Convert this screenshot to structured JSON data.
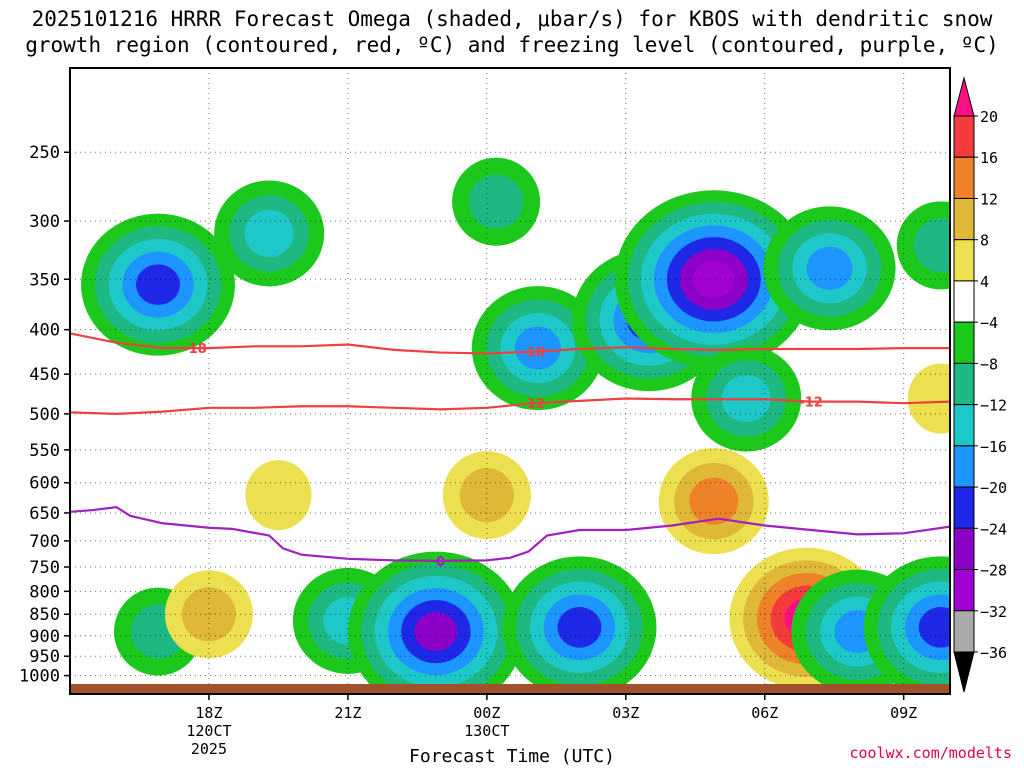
{
  "title_line1": "2025101216 HRRR Forecast Omega (shaded, μbar/s) for KBOS with dendritic snow",
  "title_line2": "growth region (contoured, red, ºC) and freezing level (contoured, purple, ºC)",
  "watermark": "coolwx.com/modelts",
  "chart_data": {
    "type": "heatmap",
    "title": "2025101216 HRRR Forecast Omega (shaded, μbar/s) for KBOS with dendritic snow growth region (contoured, red, ºC) and freezing level (contoured, purple, ºC)",
    "xlabel": "Forecast Time (UTC)",
    "ylabel": "",
    "x_hours_range": [
      15,
      34
    ],
    "ylim": [
      1050,
      200
    ],
    "y_scale": "log-pressure",
    "y_ticks": [
      250,
      300,
      350,
      400,
      450,
      500,
      550,
      600,
      650,
      700,
      750,
      800,
      850,
      900,
      950,
      1000
    ],
    "x_ticks": [
      {
        "hour": 18,
        "lines": [
          "18Z",
          "120CT",
          "2025"
        ]
      },
      {
        "hour": 21,
        "lines": [
          "21Z"
        ]
      },
      {
        "hour": 24,
        "lines": [
          "00Z",
          "130CT"
        ]
      },
      {
        "hour": 27,
        "lines": [
          "03Z"
        ]
      },
      {
        "hour": 30,
        "lines": [
          "06Z"
        ]
      },
      {
        "hour": 33,
        "lines": [
          "09Z"
        ]
      }
    ],
    "grid": true,
    "colorbar": {
      "levels": [
        20,
        16,
        12,
        8,
        4,
        -4,
        -8,
        -12,
        -16,
        -20,
        -24,
        -28,
        -32,
        -36
      ],
      "colors": [
        "#ff0f83",
        "#f43c3c",
        "#ee8228",
        "#e0b838",
        "#ece050",
        "#ffffff",
        "#1dc81d",
        "#1eb882",
        "#1ec8c8",
        "#1e96ff",
        "#1e28e6",
        "#8c00c8",
        "#a000d2",
        "#aaaaaa",
        "#000000"
      ],
      "labels": [
        "20",
        "16",
        "12",
        "8",
        "4",
        "−4",
        "−8",
        "−12",
        "−16",
        "−20",
        "−24",
        "−28",
        "−32",
        "−36"
      ]
    },
    "omega_features": [
      {
        "hour": 16.9,
        "p": 355,
        "value": -20
      },
      {
        "hour": 16.9,
        "p": 890,
        "value": -10
      },
      {
        "hour": 19.3,
        "p": 310,
        "value": -12
      },
      {
        "hour": 21.0,
        "p": 865,
        "value": -14
      },
      {
        "hour": 22.9,
        "p": 890,
        "value": -26
      },
      {
        "hour": 24.2,
        "p": 285,
        "value": -8
      },
      {
        "hour": 25.1,
        "p": 420,
        "value": -18
      },
      {
        "hour": 26.0,
        "p": 880,
        "value": -22
      },
      {
        "hour": 27.5,
        "p": 390,
        "value": -20
      },
      {
        "hour": 28.9,
        "p": 350,
        "value": -30
      },
      {
        "hour": 28.9,
        "p": 630,
        "value": 14
      },
      {
        "hour": 29.6,
        "p": 480,
        "value": -12
      },
      {
        "hour": 30.9,
        "p": 860,
        "value": 22
      },
      {
        "hour": 31.4,
        "p": 340,
        "value": -16
      },
      {
        "hour": 32.0,
        "p": 890,
        "value": -18
      },
      {
        "hour": 33.8,
        "p": 320,
        "value": -10
      },
      {
        "hour": 33.8,
        "p": 480,
        "value": 6
      },
      {
        "hour": 33.8,
        "p": 880,
        "value": -20
      },
      {
        "hour": 19.5,
        "p": 620,
        "value": 6
      },
      {
        "hour": 24.0,
        "p": 620,
        "value": 8
      },
      {
        "hour": 18.0,
        "p": 850,
        "value": 8
      }
    ],
    "series": [
      {
        "name": "-18",
        "color": "#ee4040",
        "x": [
          15,
          16,
          17,
          18,
          19,
          20,
          21,
          22,
          23,
          24,
          25,
          26,
          27,
          28,
          29,
          30,
          31,
          32,
          33,
          34
        ],
        "y": [
          404,
          414,
          420,
          420,
          418,
          418,
          416,
          422,
          425,
          426,
          424,
          421,
          419,
          421,
          422,
          421,
          421,
          421,
          420,
          420
        ]
      },
      {
        "name": "-12",
        "color": "#ee4040",
        "x": [
          15,
          16,
          17,
          18,
          19,
          20,
          21,
          22,
          23,
          24,
          25,
          26,
          27,
          28,
          29,
          30,
          31,
          32,
          33,
          34
        ],
        "y": [
          498,
          500,
          497,
          492,
          492,
          490,
          490,
          492,
          494,
          492,
          486,
          483,
          480,
          481,
          481,
          481,
          484,
          484,
          486,
          484
        ]
      },
      {
        "name": "0",
        "color": "#a020c0",
        "x": [
          15,
          15.5,
          16,
          16.3,
          17,
          17.5,
          18,
          18.5,
          19.3,
          19.6,
          20,
          21,
          22,
          23,
          24,
          24.5,
          24.9,
          25.3,
          26,
          27,
          28,
          29,
          30,
          31,
          32,
          33,
          34
        ],
        "y": [
          648,
          645,
          640,
          655,
          668,
          672,
          676,
          678,
          690,
          714,
          726,
          734,
          737,
          738,
          737,
          732,
          720,
          690,
          680,
          680,
          672,
          660,
          672,
          680,
          688,
          686,
          674
        ]
      }
    ],
    "contour_labels": [
      {
        "series": "-18",
        "hour": 17.7,
        "text": "-18"
      },
      {
        "series": "-18",
        "hour": 25.0,
        "text": "-18"
      },
      {
        "series": "-12",
        "hour": 25.0,
        "text": "-12"
      },
      {
        "series": "-12",
        "hour": 31.0,
        "text": "-12"
      },
      {
        "series": "0",
        "hour": 23.0,
        "text": "0"
      }
    ]
  }
}
